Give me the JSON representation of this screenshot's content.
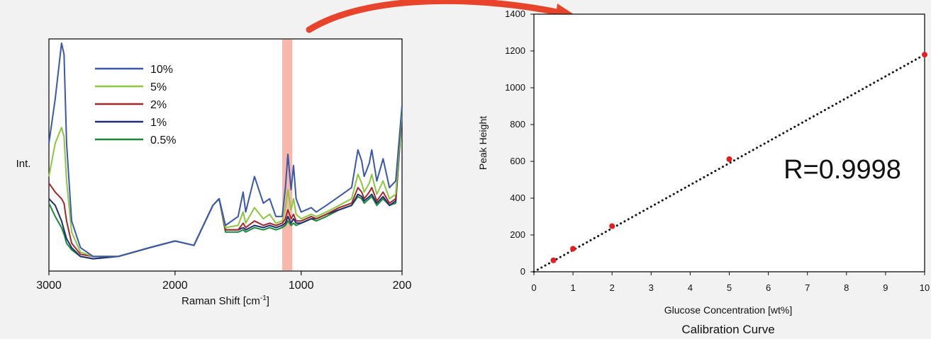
{
  "chart_data": [
    {
      "type": "line",
      "title": "",
      "xlabel": "Raman Shift [cm",
      "xlabel_sup": "-1",
      "xlabel_suffix": "]",
      "ylabel": "Int.",
      "xlim": [
        3000,
        200
      ],
      "x_reversed": true,
      "xticks": [
        3000,
        2000,
        1000,
        200
      ],
      "highlight_band": {
        "from": 1150,
        "to": 1070,
        "color": "#f7b4a8"
      },
      "legend_position": "top-left",
      "series": [
        {
          "name": "10%",
          "color": "#3a57a8",
          "x": [
            3000,
            2950,
            2900,
            2880,
            2860,
            2820,
            2750,
            2650,
            2450,
            2200,
            2000,
            1850,
            1700,
            1650,
            1600,
            1500,
            1460,
            1440,
            1370,
            1300,
            1250,
            1200,
            1150,
            1125,
            1105,
            1080,
            1060,
            1040,
            1000,
            920,
            880,
            800,
            700,
            600,
            550,
            520,
            500,
            460,
            440,
            400,
            350,
            300,
            250,
            200
          ],
          "y": [
            0.55,
            0.75,
            1.0,
            0.95,
            0.55,
            0.2,
            0.08,
            0.04,
            0.04,
            0.08,
            0.11,
            0.09,
            0.27,
            0.3,
            0.18,
            0.22,
            0.33,
            0.24,
            0.4,
            0.28,
            0.3,
            0.22,
            0.22,
            0.35,
            0.5,
            0.34,
            0.45,
            0.3,
            0.24,
            0.26,
            0.24,
            0.27,
            0.31,
            0.35,
            0.52,
            0.47,
            0.4,
            0.46,
            0.52,
            0.38,
            0.48,
            0.35,
            0.38,
            0.72
          ]
        },
        {
          "name": "5%",
          "color": "#8dc63f",
          "x": [
            3000,
            2950,
            2900,
            2880,
            2860,
            2820,
            2750,
            2650,
            2450,
            2200,
            2000,
            1850,
            1700,
            1650,
            1600,
            1500,
            1460,
            1440,
            1370,
            1300,
            1250,
            1200,
            1150,
            1125,
            1105,
            1080,
            1060,
            1040,
            1000,
            920,
            880,
            800,
            700,
            600,
            550,
            520,
            500,
            460,
            440,
            400,
            350,
            300,
            250,
            200
          ],
          "y": [
            0.4,
            0.55,
            0.62,
            0.58,
            0.38,
            0.15,
            0.06,
            0.04,
            0.04,
            0.08,
            0.11,
            0.09,
            0.27,
            0.3,
            0.17,
            0.18,
            0.24,
            0.19,
            0.26,
            0.21,
            0.23,
            0.19,
            0.2,
            0.26,
            0.34,
            0.25,
            0.3,
            0.23,
            0.21,
            0.23,
            0.22,
            0.24,
            0.27,
            0.3,
            0.41,
            0.37,
            0.33,
            0.37,
            0.41,
            0.32,
            0.38,
            0.3,
            0.32,
            0.7
          ]
        },
        {
          "name": "2%",
          "color": "#a0282c",
          "x": [
            3000,
            2950,
            2900,
            2880,
            2860,
            2820,
            2750,
            2650,
            2450,
            2200,
            2000,
            1850,
            1700,
            1650,
            1600,
            1500,
            1460,
            1440,
            1370,
            1300,
            1250,
            1200,
            1150,
            1125,
            1105,
            1080,
            1060,
            1040,
            1000,
            920,
            880,
            800,
            700,
            600,
            550,
            520,
            500,
            460,
            440,
            400,
            350,
            300,
            250,
            200
          ],
          "y": [
            0.37,
            0.33,
            0.3,
            0.28,
            0.2,
            0.1,
            0.05,
            0.04,
            0.04,
            0.08,
            0.11,
            0.09,
            0.27,
            0.3,
            0.16,
            0.16,
            0.19,
            0.17,
            0.2,
            0.18,
            0.19,
            0.18,
            0.19,
            0.21,
            0.25,
            0.21,
            0.23,
            0.2,
            0.2,
            0.22,
            0.21,
            0.23,
            0.26,
            0.28,
            0.35,
            0.33,
            0.3,
            0.33,
            0.35,
            0.29,
            0.33,
            0.28,
            0.3,
            0.7
          ]
        },
        {
          "name": "1%",
          "color": "#1f2e6e",
          "x": [
            3000,
            2950,
            2900,
            2880,
            2860,
            2820,
            2750,
            2650,
            2450,
            2200,
            2000,
            1850,
            1700,
            1650,
            1600,
            1500,
            1460,
            1440,
            1370,
            1300,
            1250,
            1200,
            1150,
            1125,
            1105,
            1080,
            1060,
            1040,
            1000,
            920,
            880,
            800,
            700,
            600,
            550,
            520,
            500,
            460,
            440,
            400,
            350,
            300,
            250,
            200
          ],
          "y": [
            0.3,
            0.27,
            0.2,
            0.16,
            0.12,
            0.08,
            0.04,
            0.03,
            0.04,
            0.08,
            0.11,
            0.09,
            0.27,
            0.3,
            0.16,
            0.16,
            0.17,
            0.16,
            0.18,
            0.17,
            0.18,
            0.17,
            0.18,
            0.19,
            0.22,
            0.19,
            0.21,
            0.19,
            0.19,
            0.21,
            0.21,
            0.23,
            0.25,
            0.27,
            0.32,
            0.31,
            0.29,
            0.31,
            0.32,
            0.28,
            0.31,
            0.27,
            0.29,
            0.69
          ]
        },
        {
          "name": "0.5%",
          "color": "#1a8a3a",
          "x": [
            3000,
            2950,
            2900,
            2880,
            2860,
            2820,
            2750,
            2650,
            2450,
            2200,
            2000,
            1850,
            1700,
            1650,
            1600,
            1500,
            1460,
            1440,
            1370,
            1300,
            1250,
            1200,
            1150,
            1125,
            1105,
            1080,
            1060,
            1040,
            1000,
            920,
            880,
            800,
            700,
            600,
            550,
            520,
            500,
            460,
            440,
            400,
            350,
            300,
            250,
            200
          ],
          "y": [
            0.28,
            0.22,
            0.17,
            0.14,
            0.1,
            0.07,
            0.04,
            0.03,
            0.04,
            0.08,
            0.11,
            0.09,
            0.27,
            0.3,
            0.15,
            0.15,
            0.16,
            0.15,
            0.17,
            0.16,
            0.17,
            0.16,
            0.17,
            0.18,
            0.2,
            0.18,
            0.19,
            0.18,
            0.19,
            0.21,
            0.2,
            0.22,
            0.25,
            0.27,
            0.31,
            0.3,
            0.28,
            0.3,
            0.31,
            0.27,
            0.3,
            0.27,
            0.28,
            0.68
          ]
        }
      ]
    },
    {
      "type": "scatter",
      "title": "Calibration Curve",
      "xlabel": "Glucose Concentration [wt%]",
      "ylabel": "Peak Height",
      "xlim": [
        0,
        10
      ],
      "ylim": [
        0,
        1400
      ],
      "xticks": [
        0,
        1,
        2,
        3,
        4,
        5,
        6,
        7,
        8,
        9,
        10
      ],
      "yticks": [
        0,
        200,
        400,
        600,
        800,
        1000,
        1200,
        1400
      ],
      "annotation": "R=0.9998",
      "points": [
        {
          "x": 0.5,
          "y": 62
        },
        {
          "x": 1,
          "y": 125
        },
        {
          "x": 2,
          "y": 248
        },
        {
          "x": 5,
          "y": 612
        },
        {
          "x": 10,
          "y": 1180
        }
      ],
      "point_color": "#e02020",
      "trendline": {
        "x": [
          0,
          10
        ],
        "y": [
          0,
          1180
        ],
        "style": "dotted",
        "color": "#111111"
      }
    }
  ],
  "arrow_color": "#e8432b"
}
